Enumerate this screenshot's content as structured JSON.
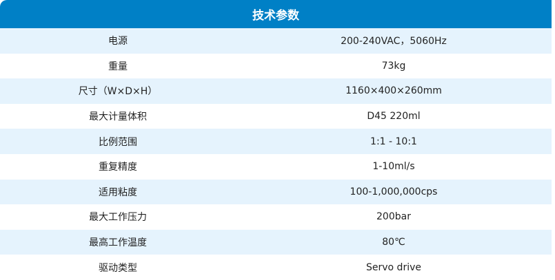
{
  "title": "技术参数",
  "colors": {
    "header": "#0080c6",
    "stripe": "#e5f3fd"
  },
  "rows": [
    {
      "label": "电源",
      "value": "200-240VAC，5060Hz"
    },
    {
      "label": "重量",
      "value": "73kg"
    },
    {
      "label": "尺寸（W×D×H）",
      "value": "1160×400×260mm"
    },
    {
      "label": "最大计量体积",
      "value": "D45 220ml"
    },
    {
      "label": "比例范围",
      "value": "1:1 - 10:1"
    },
    {
      "label": "重复精度",
      "value": "1-10ml/s"
    },
    {
      "label": "适用粘度",
      "value": "100-1,000,000cps"
    },
    {
      "label": "最大工作压力",
      "value": "200bar"
    },
    {
      "label": "最高工作温度",
      "value": "80℃"
    },
    {
      "label": "驱动类型",
      "value": "Servo drive"
    }
  ]
}
